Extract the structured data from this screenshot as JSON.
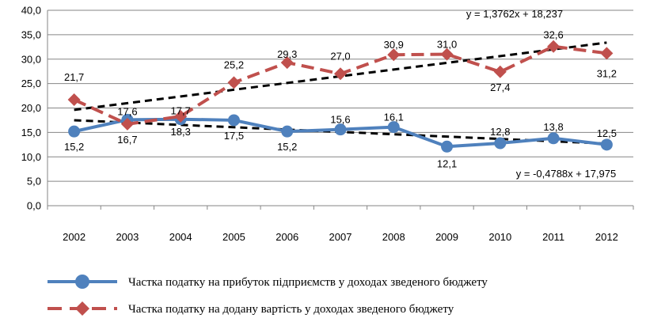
{
  "chart_data": {
    "type": "line",
    "categories": [
      "2002",
      "2003",
      "2004",
      "2005",
      "2006",
      "2007",
      "2008",
      "2009",
      "2010",
      "2011",
      "2012"
    ],
    "ylim": [
      0,
      40
    ],
    "yticks": [
      "0,0",
      "5,0",
      "10,0",
      "15,0",
      "20,0",
      "25,0",
      "30,0",
      "35,0",
      "40,0"
    ],
    "grid": true,
    "legend_position": "bottom",
    "series": [
      {
        "name": "Частка податку на прибуток підприємств у доходах зведеного бюджету",
        "values": [
          15.2,
          17.6,
          17.7,
          17.5,
          15.2,
          15.6,
          16.1,
          12.1,
          12.8,
          13.8,
          12.5
        ],
        "labels": [
          "15,2",
          "17,6",
          "17,7",
          "17,5",
          "15,2",
          "15,6",
          "16,1",
          "12,1",
          "12,8",
          "13,8",
          "12,5"
        ],
        "color": "#4f81bd",
        "style": "solid",
        "marker": "circle",
        "trendline": {
          "slope": -0.4788,
          "intercept": 17.975,
          "label": "y = -0,4788x + 17,975"
        }
      },
      {
        "name": "Частка податку на додану вартість у доходах зведеного бюджету",
        "values": [
          21.7,
          16.7,
          18.3,
          25.2,
          29.3,
          27.0,
          30.9,
          31.0,
          27.4,
          32.6,
          31.2
        ],
        "labels": [
          "21,7",
          "16,7",
          "18,3",
          "25,2",
          "29,3",
          "27,0",
          "30,9",
          "31,0",
          "27,4",
          "32,6",
          "31,2"
        ],
        "color": "#c0504d",
        "style": "dashed",
        "marker": "diamond",
        "trendline": {
          "slope": 1.3762,
          "intercept": 18.237,
          "label": "y = 1,3762x + 18,237"
        }
      }
    ]
  }
}
